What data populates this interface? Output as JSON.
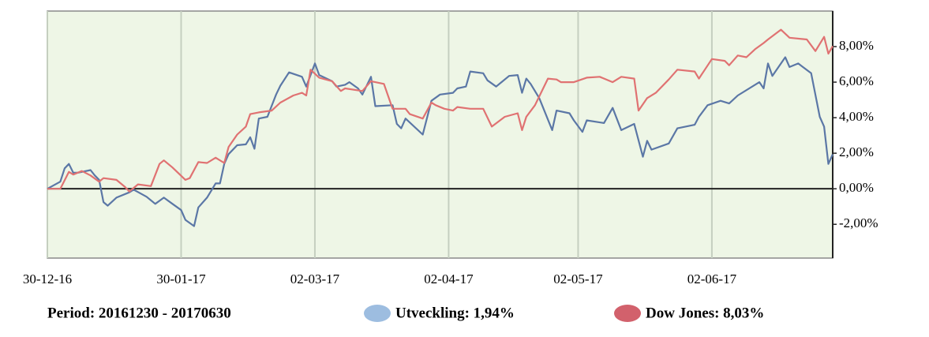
{
  "chart_data": {
    "type": "line",
    "period": "Period: 20161230 - 20170630",
    "xlim": [
      "2016-12-30",
      "2017-06-30"
    ],
    "xticks": [
      {
        "value": "2016-12-30",
        "label": "30-12-16"
      },
      {
        "value": "2017-01-30",
        "label": "30-01-17"
      },
      {
        "value": "2017-03-02",
        "label": "02-03-17"
      },
      {
        "value": "2017-04-02",
        "label": "02-04-17"
      },
      {
        "value": "2017-05-02",
        "label": "02-05-17"
      },
      {
        "value": "2017-06-02",
        "label": "02-06-17"
      }
    ],
    "ylim": [
      -3.9,
      10
    ],
    "yticks": [
      {
        "value": -2,
        "label": "-2,00%"
      },
      {
        "value": 0,
        "label": "0,00%"
      },
      {
        "value": 2,
        "label": "2,00%"
      },
      {
        "value": 4,
        "label": "4,00%"
      },
      {
        "value": 6,
        "label": "6,00%"
      },
      {
        "value": 8,
        "label": "8,00%"
      }
    ],
    "grid": true,
    "background": "#eef6e6",
    "series": [
      {
        "name": "Utveckling: 1,94%",
        "color": "#5b77a6",
        "legend_color": "#9dbde0",
        "x": [
          "2016-12-30",
          "2017-01-02",
          "2017-01-03",
          "2017-01-04",
          "2017-01-05",
          "2017-01-06",
          "2017-01-09",
          "2017-01-10",
          "2017-01-11",
          "2017-01-12",
          "2017-01-13",
          "2017-01-15",
          "2017-01-18",
          "2017-01-19",
          "2017-01-22",
          "2017-01-24",
          "2017-01-26",
          "2017-01-28",
          "2017-01-30",
          "2017-01-31",
          "2017-02-02",
          "2017-02-03",
          "2017-02-05",
          "2017-02-07",
          "2017-02-08",
          "2017-02-09",
          "2017-02-10",
          "2017-02-12",
          "2017-02-14",
          "2017-02-15",
          "2017-02-16",
          "2017-02-17",
          "2017-02-19",
          "2017-02-21",
          "2017-02-22",
          "2017-02-24",
          "2017-02-27",
          "2017-02-28",
          "2017-03-02",
          "2017-03-03",
          "2017-03-06",
          "2017-03-07",
          "2017-03-09",
          "2017-03-10",
          "2017-03-12",
          "2017-03-13",
          "2017-03-15",
          "2017-03-16",
          "2017-03-20",
          "2017-03-21",
          "2017-03-22",
          "2017-03-23",
          "2017-03-27",
          "2017-03-29",
          "2017-03-31",
          "2017-04-03",
          "2017-04-04",
          "2017-04-06",
          "2017-04-07",
          "2017-04-10",
          "2017-04-11",
          "2017-04-13",
          "2017-04-16",
          "2017-04-18",
          "2017-04-19",
          "2017-04-20",
          "2017-04-21",
          "2017-04-23",
          "2017-04-26",
          "2017-04-27",
          "2017-04-30",
          "2017-05-01",
          "2017-05-03",
          "2017-05-04",
          "2017-05-08",
          "2017-05-10",
          "2017-05-12",
          "2017-05-15",
          "2017-05-17",
          "2017-05-18",
          "2017-05-19",
          "2017-05-23",
          "2017-05-25",
          "2017-05-29",
          "2017-05-30",
          "2017-06-01",
          "2017-06-04",
          "2017-06-06",
          "2017-06-08",
          "2017-06-13",
          "2017-06-14",
          "2017-06-15",
          "2017-06-16",
          "2017-06-19",
          "2017-06-20",
          "2017-06-22",
          "2017-06-25",
          "2017-06-27",
          "2017-06-28",
          "2017-06-29",
          "2017-06-30"
        ],
        "values": [
          0,
          0.4,
          1.15,
          1.4,
          0.9,
          0.9,
          1.05,
          0.75,
          0.5,
          -0.75,
          -0.95,
          -0.5,
          -0.2,
          -0.05,
          -0.45,
          -0.85,
          -0.5,
          -0.85,
          -1.2,
          -1.75,
          -2.1,
          -1.05,
          -0.5,
          0.3,
          0.3,
          1.4,
          1.95,
          2.45,
          2.5,
          2.9,
          2.25,
          3.95,
          4.05,
          5.3,
          5.8,
          6.55,
          6.3,
          5.75,
          7.05,
          6.4,
          6.05,
          5.75,
          5.85,
          6.0,
          5.65,
          5.3,
          6.3,
          4.65,
          4.7,
          3.65,
          3.4,
          3.95,
          3.05,
          4.95,
          5.3,
          5.4,
          5.65,
          5.75,
          6.6,
          6.5,
          6.1,
          5.75,
          6.35,
          6.4,
          5.4,
          6.2,
          5.9,
          5.1,
          3.3,
          4.4,
          4.25,
          3.85,
          3.2,
          3.85,
          3.7,
          4.55,
          3.3,
          3.65,
          1.8,
          2.7,
          2.2,
          2.55,
          3.4,
          3.6,
          4.05,
          4.7,
          4.95,
          4.8,
          5.25,
          6.0,
          5.65,
          7.05,
          6.35,
          7.4,
          6.85,
          7.05,
          6.5,
          4.05,
          3.5,
          1.4,
          1.94
        ]
      },
      {
        "name": "Dow Jones: 8,03%",
        "color": "#e07272",
        "legend_color": "#d2616c",
        "x": [
          "2016-12-30",
          "2017-01-02",
          "2017-01-04",
          "2017-01-05",
          "2017-01-07",
          "2017-01-09",
          "2017-01-11",
          "2017-01-12",
          "2017-01-15",
          "2017-01-17",
          "2017-01-18",
          "2017-01-20",
          "2017-01-23",
          "2017-01-25",
          "2017-01-26",
          "2017-01-28",
          "2017-01-31",
          "2017-02-01",
          "2017-02-03",
          "2017-02-05",
          "2017-02-07",
          "2017-02-09",
          "2017-02-10",
          "2017-02-12",
          "2017-02-14",
          "2017-02-15",
          "2017-02-17",
          "2017-02-20",
          "2017-02-22",
          "2017-02-25",
          "2017-02-27",
          "2017-02-28",
          "2017-03-01",
          "2017-03-03",
          "2017-03-06",
          "2017-03-08",
          "2017-03-09",
          "2017-03-13",
          "2017-03-15",
          "2017-03-18",
          "2017-03-20",
          "2017-03-23",
          "2017-03-24",
          "2017-03-27",
          "2017-03-29",
          "2017-03-30",
          "2017-04-01",
          "2017-04-03",
          "2017-04-04",
          "2017-04-07",
          "2017-04-10",
          "2017-04-12",
          "2017-04-15",
          "2017-04-18",
          "2017-04-19",
          "2017-04-20",
          "2017-04-22",
          "2017-04-25",
          "2017-04-27",
          "2017-04-28",
          "2017-05-01",
          "2017-05-04",
          "2017-05-07",
          "2017-05-10",
          "2017-05-12",
          "2017-05-15",
          "2017-05-16",
          "2017-05-18",
          "2017-05-20",
          "2017-05-23",
          "2017-05-25",
          "2017-05-29",
          "2017-05-30",
          "2017-06-02",
          "2017-06-05",
          "2017-06-06",
          "2017-06-08",
          "2017-06-10",
          "2017-06-12",
          "2017-06-14",
          "2017-06-15",
          "2017-06-18",
          "2017-06-20",
          "2017-06-24",
          "2017-06-26",
          "2017-06-28",
          "2017-06-29",
          "2017-06-30"
        ],
        "values": [
          0,
          0,
          0.95,
          0.8,
          1.0,
          0.75,
          0.4,
          0.6,
          0.5,
          0.1,
          -0.15,
          0.25,
          0.15,
          1.4,
          1.6,
          1.2,
          0.5,
          0.6,
          1.5,
          1.45,
          1.75,
          1.45,
          2.35,
          3.05,
          3.5,
          4.2,
          4.3,
          4.4,
          4.85,
          5.25,
          5.4,
          5.25,
          6.7,
          6.25,
          6.05,
          5.5,
          5.65,
          5.5,
          6.05,
          5.9,
          4.5,
          4.5,
          4.2,
          3.95,
          4.85,
          4.7,
          4.5,
          4.4,
          4.6,
          4.5,
          4.5,
          3.5,
          4.05,
          4.25,
          3.3,
          4.05,
          4.7,
          6.2,
          6.15,
          6.0,
          6.0,
          6.25,
          6.3,
          6.0,
          6.3,
          6.2,
          4.4,
          5.1,
          5.4,
          6.15,
          6.7,
          6.6,
          6.2,
          7.3,
          7.2,
          6.95,
          7.5,
          7.4,
          7.85,
          8.2,
          8.4,
          8.95,
          8.5,
          8.4,
          7.75,
          8.55,
          7.6,
          8.03
        ]
      }
    ]
  }
}
